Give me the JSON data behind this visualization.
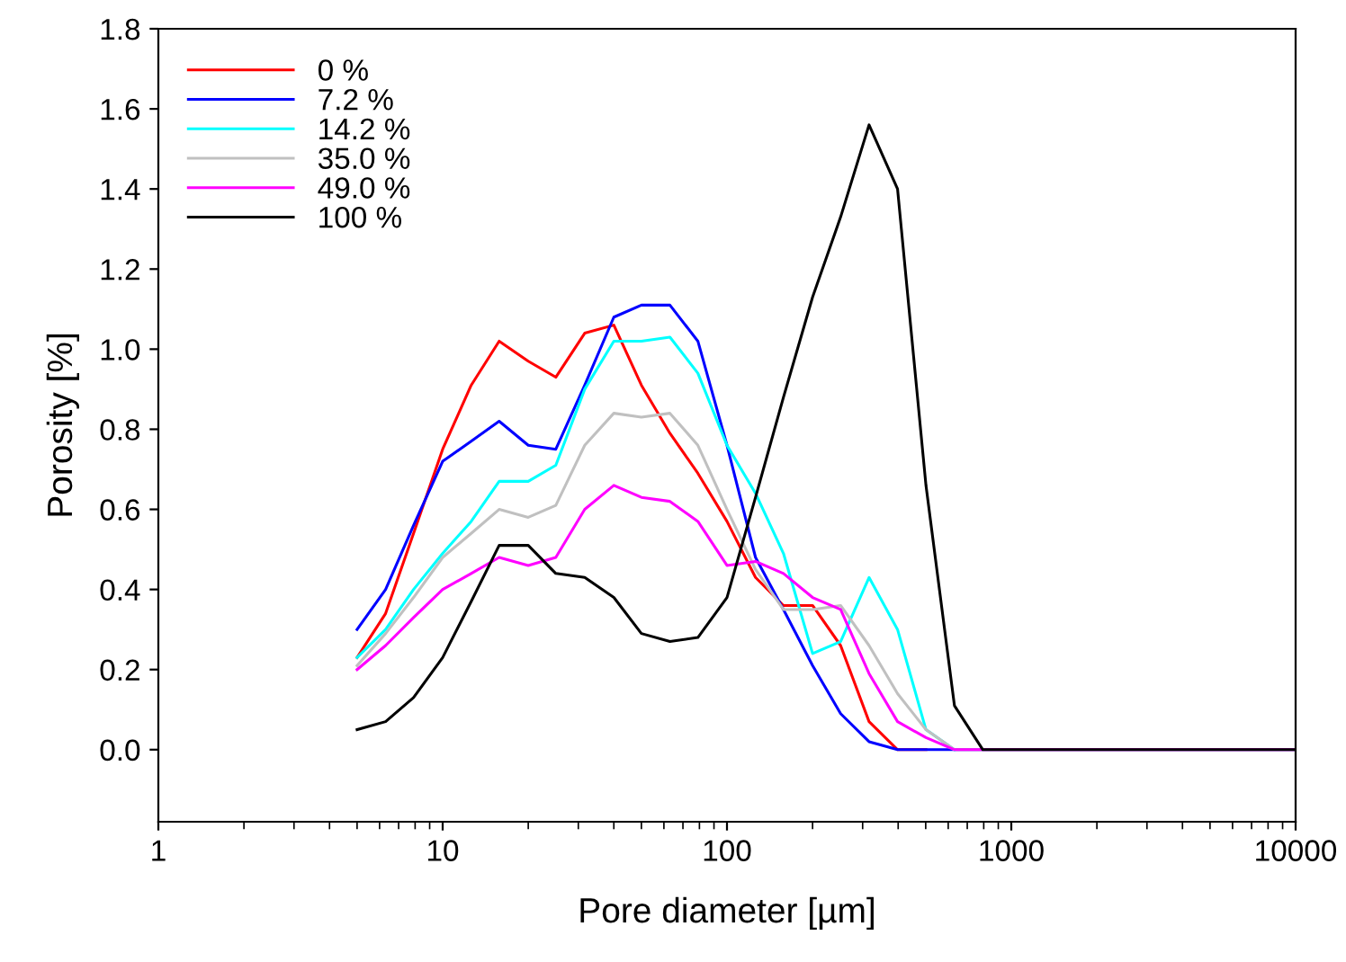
{
  "chart_data": {
    "type": "line",
    "xlabel": "Pore diameter [µm]",
    "ylabel": "Porosity [%]",
    "log": "x",
    "x": [
      5,
      6.3,
      7.9,
      10,
      12.6,
      15.8,
      20,
      25,
      31.6,
      40,
      50,
      63,
      79,
      100,
      126,
      158,
      200,
      251,
      316,
      398,
      501,
      631,
      794,
      10000
    ],
    "series": [
      {
        "name": "0 %",
        "color": "#ff0000",
        "values": [
          0.23,
          0.34,
          0.54,
          0.75,
          0.91,
          1.02,
          0.97,
          0.93,
          1.04,
          1.06,
          0.91,
          0.79,
          0.69,
          0.57,
          0.43,
          0.36,
          0.36,
          0.26,
          0.07,
          0,
          0,
          null,
          null,
          null
        ]
      },
      {
        "name": "7.2 %",
        "color": "#0000ff",
        "values": [
          0.3,
          0.4,
          0.56,
          0.72,
          0.77,
          0.82,
          0.76,
          0.75,
          0.91,
          1.08,
          1.11,
          1.11,
          1.02,
          0.76,
          0.48,
          0.35,
          0.21,
          0.09,
          0.02,
          0,
          0,
          0,
          0,
          0
        ]
      },
      {
        "name": "14.2 %",
        "color": "#00ffff",
        "values": [
          0.23,
          0.3,
          0.4,
          0.49,
          0.57,
          0.67,
          0.67,
          0.71,
          0.9,
          1.02,
          1.02,
          1.03,
          0.94,
          0.76,
          0.64,
          0.49,
          0.24,
          0.27,
          0.43,
          0.3,
          0.05,
          0,
          null,
          null
        ]
      },
      {
        "name": "35.0 %",
        "color": "#c0c0c0",
        "values": [
          0.21,
          0.29,
          0.38,
          0.48,
          0.54,
          0.6,
          0.58,
          0.61,
          0.76,
          0.84,
          0.83,
          0.84,
          0.76,
          0.6,
          0.45,
          0.35,
          0.35,
          0.36,
          0.26,
          0.14,
          0.05,
          0,
          0,
          0
        ]
      },
      {
        "name": "49.0 %",
        "color": "#ff00ff",
        "values": [
          0.2,
          0.26,
          0.33,
          0.4,
          0.44,
          0.48,
          0.46,
          0.48,
          0.6,
          0.66,
          0.63,
          0.62,
          0.57,
          0.46,
          0.47,
          0.44,
          0.38,
          0.35,
          0.19,
          0.07,
          0.03,
          0,
          0,
          0
        ]
      },
      {
        "name": "100 %",
        "color": "#000000",
        "values": [
          0.05,
          0.07,
          0.13,
          0.23,
          0.37,
          0.51,
          0.51,
          0.44,
          0.43,
          0.38,
          0.29,
          0.27,
          0.28,
          0.38,
          0.63,
          0.88,
          1.13,
          1.33,
          1.56,
          1.4,
          0.66,
          0.11,
          0,
          0
        ]
      }
    ],
    "xlim": [
      1,
      10000
    ],
    "xticks": [
      1,
      10,
      100,
      1000,
      10000
    ],
    "ylim": [
      -0.18,
      1.8
    ],
    "yticks": [
      {
        "value": 0,
        "label": "0.0"
      },
      {
        "value": 0.2,
        "label": "0.2"
      },
      {
        "value": 0.4,
        "label": "0.4"
      },
      {
        "value": 0.6,
        "label": "0.6"
      },
      {
        "value": 0.8,
        "label": "0.8"
      },
      {
        "value": 1.0,
        "label": "1.0"
      },
      {
        "value": 1.2,
        "label": "1.2"
      },
      {
        "value": 1.4,
        "label": "1.4"
      },
      {
        "value": 1.6,
        "label": "1.6"
      },
      {
        "value": 1.8,
        "label": "1.8"
      }
    ],
    "grid": false,
    "legend": "top left",
    "marker": "none",
    "line_style": "solid"
  }
}
